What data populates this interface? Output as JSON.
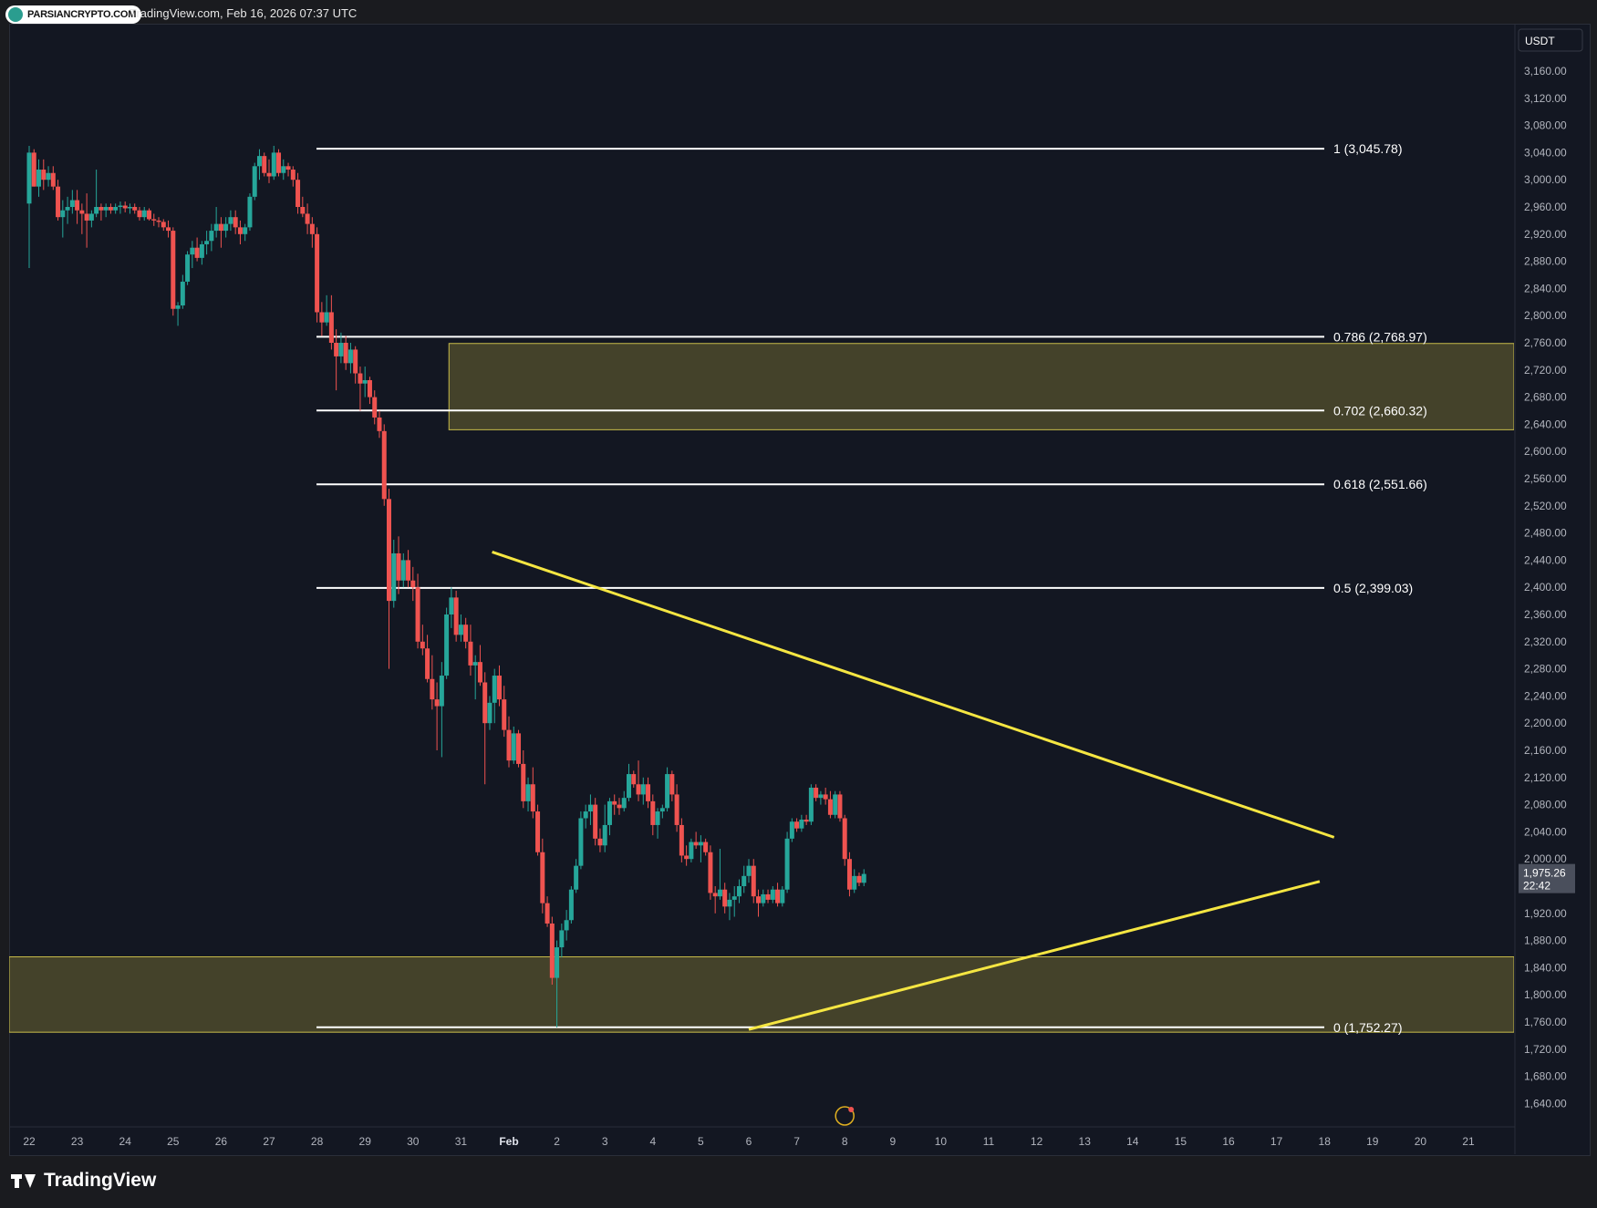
{
  "header": {
    "badge": "PARSIANCRYPTO.COM",
    "caption": "TradingView.com, Feb 16, 2026 07:37 UTC"
  },
  "footer": {
    "brand": "TradingView"
  },
  "chart_data": {
    "type": "candlestick",
    "currency": "USDT",
    "ylim": [
      1610,
      3195
    ],
    "y_ticks": [
      3160,
      3120,
      3080,
      3040,
      3000,
      2960,
      2920,
      2880,
      2840,
      2800,
      2760,
      2720,
      2680,
      2640,
      2600,
      2560,
      2520,
      2480,
      2440,
      2400,
      2360,
      2320,
      2280,
      2240,
      2200,
      2160,
      2120,
      2080,
      2040,
      2000,
      1920,
      1880,
      1840,
      1800,
      1760,
      1720,
      1680,
      1640
    ],
    "x_ticks": [
      "22",
      "23",
      "24",
      "25",
      "26",
      "27",
      "28",
      "29",
      "30",
      "31",
      "Feb",
      "2",
      "3",
      "4",
      "5",
      "6",
      "7",
      "8",
      "9",
      "10",
      "11",
      "12",
      "13",
      "14",
      "15",
      "16",
      "17",
      "18",
      "19",
      "20",
      "21"
    ],
    "last_price": {
      "value": "1,975.26",
      "countdown": "22:42"
    },
    "fib_levels": [
      {
        "label": "1 (3,045.78)",
        "value": 3045.78
      },
      {
        "label": "0.786 (2,768.97)",
        "value": 2768.97
      },
      {
        "label": "0.702 (2,660.32)",
        "value": 2660.32
      },
      {
        "label": "0.618 (2,551.66)",
        "value": 2551.66
      },
      {
        "label": "0.5 (2,399.03)",
        "value": 2399.03
      },
      {
        "label": "0 (1,752.27)",
        "value": 1752.27
      }
    ],
    "zones": [
      {
        "from_day": 30.75,
        "to_day": "end",
        "low": 2632,
        "high": 2759
      },
      {
        "from_day": "start",
        "to_day": "end",
        "low": 1745,
        "high": 1856
      }
    ],
    "trendlines": [
      {
        "name": "descending resistance",
        "from": [
          31.65,
          2452
        ],
        "to": [
          49.2,
          2032
        ]
      },
      {
        "name": "ascending support",
        "from": [
          37.0,
          1749
        ],
        "to": [
          48.9,
          1967
        ]
      }
    ],
    "colors": {
      "up": "#26a69a",
      "down": "#ef5350",
      "zone": "#4d4a2c",
      "trend": "#f5e642",
      "fib": "#ffffff"
    },
    "candles": [
      [
        22.0,
        2965,
        3050,
        2870,
        3040
      ],
      [
        22.1,
        3040,
        3045,
        2990,
        2990
      ],
      [
        22.2,
        2990,
        3030,
        2975,
        3015
      ],
      [
        22.3,
        3015,
        3030,
        2985,
        3000
      ],
      [
        22.4,
        3000,
        3020,
        2990,
        3010
      ],
      [
        22.5,
        3010,
        3020,
        2985,
        2990
      ],
      [
        22.6,
        2990,
        3000,
        2940,
        2945
      ],
      [
        22.7,
        2945,
        2970,
        2915,
        2955
      ],
      [
        22.8,
        2955,
        2975,
        2935,
        2960
      ],
      [
        22.9,
        2960,
        2985,
        2950,
        2970
      ],
      [
        23.0,
        2970,
        2985,
        2935,
        2955
      ],
      [
        23.1,
        2955,
        2965,
        2920,
        2950
      ],
      [
        23.2,
        2950,
        2980,
        2900,
        2940
      ],
      [
        23.3,
        2940,
        2955,
        2930,
        2950
      ],
      [
        23.4,
        2950,
        3015,
        2945,
        2960
      ],
      [
        23.5,
        2960,
        2965,
        2940,
        2955
      ],
      [
        23.6,
        2955,
        2965,
        2945,
        2960
      ],
      [
        23.7,
        2960,
        2965,
        2950,
        2955
      ],
      [
        23.8,
        2955,
        2965,
        2950,
        2960
      ],
      [
        23.9,
        2960,
        2968,
        2950,
        2962
      ],
      [
        24.0,
        2962,
        2968,
        2952,
        2958
      ],
      [
        24.1,
        2958,
        2965,
        2950,
        2960
      ],
      [
        24.2,
        2960,
        2965,
        2950,
        2955
      ],
      [
        24.3,
        2955,
        2960,
        2940,
        2945
      ],
      [
        24.4,
        2945,
        2960,
        2940,
        2955
      ],
      [
        24.5,
        2955,
        2958,
        2940,
        2942
      ],
      [
        24.6,
        2942,
        2950,
        2932,
        2940
      ],
      [
        24.7,
        2940,
        2945,
        2930,
        2938
      ],
      [
        24.8,
        2938,
        2942,
        2925,
        2930
      ],
      [
        24.9,
        2930,
        2940,
        2915,
        2925
      ],
      [
        25.0,
        2925,
        2930,
        2800,
        2810
      ],
      [
        25.1,
        2810,
        2820,
        2785,
        2815
      ],
      [
        25.2,
        2815,
        2860,
        2810,
        2850
      ],
      [
        25.3,
        2850,
        2895,
        2845,
        2890
      ],
      [
        25.4,
        2890,
        2910,
        2870,
        2900
      ],
      [
        25.5,
        2900,
        2915,
        2880,
        2885
      ],
      [
        25.6,
        2885,
        2910,
        2875,
        2905
      ],
      [
        25.7,
        2905,
        2925,
        2890,
        2910
      ],
      [
        25.8,
        2910,
        2935,
        2895,
        2925
      ],
      [
        25.9,
        2925,
        2960,
        2915,
        2935
      ],
      [
        26.0,
        2935,
        2945,
        2900,
        2925
      ],
      [
        26.1,
        2925,
        2945,
        2915,
        2935
      ],
      [
        26.2,
        2935,
        2955,
        2925,
        2945
      ],
      [
        26.3,
        2945,
        2955,
        2920,
        2930
      ],
      [
        26.4,
        2930,
        2940,
        2905,
        2920
      ],
      [
        26.5,
        2920,
        2935,
        2910,
        2930
      ],
      [
        26.6,
        2930,
        2980,
        2925,
        2975
      ],
      [
        26.7,
        2975,
        3025,
        2970,
        3020
      ],
      [
        26.8,
        3020,
        3045,
        3000,
        3035
      ],
      [
        26.9,
        3035,
        3040,
        3005,
        3010
      ],
      [
        27.0,
        3010,
        3030,
        2995,
        3005
      ],
      [
        27.1,
        3005,
        3050,
        3000,
        3040
      ],
      [
        27.2,
        3040,
        3045,
        3005,
        3010
      ],
      [
        27.3,
        3010,
        3030,
        3000,
        3020
      ],
      [
        27.4,
        3020,
        3025,
        3005,
        3015
      ],
      [
        27.5,
        3015,
        3020,
        2990,
        3000
      ],
      [
        27.6,
        3000,
        3010,
        2950,
        2960
      ],
      [
        27.7,
        2960,
        2975,
        2945,
        2950
      ],
      [
        27.8,
        2950,
        2965,
        2920,
        2935
      ],
      [
        27.9,
        2935,
        2945,
        2900,
        2920
      ],
      [
        28.0,
        2920,
        2930,
        2790,
        2805
      ],
      [
        28.1,
        2805,
        2820,
        2770,
        2790
      ],
      [
        28.2,
        2790,
        2830,
        2785,
        2805
      ],
      [
        28.3,
        2805,
        2830,
        2750,
        2760
      ],
      [
        28.4,
        2760,
        2780,
        2690,
        2740
      ],
      [
        28.5,
        2740,
        2775,
        2730,
        2760
      ],
      [
        28.6,
        2760,
        2770,
        2720,
        2730
      ],
      [
        28.7,
        2730,
        2760,
        2715,
        2750
      ],
      [
        28.8,
        2750,
        2755,
        2700,
        2715
      ],
      [
        28.9,
        2715,
        2725,
        2660,
        2700
      ],
      [
        29.0,
        2700,
        2725,
        2680,
        2705
      ],
      [
        29.1,
        2705,
        2710,
        2670,
        2680
      ],
      [
        29.2,
        2680,
        2690,
        2640,
        2650
      ],
      [
        29.3,
        2650,
        2660,
        2620,
        2630
      ],
      [
        29.4,
        2630,
        2640,
        2520,
        2530
      ],
      [
        29.5,
        2530,
        2545,
        2280,
        2380
      ],
      [
        29.6,
        2380,
        2470,
        2370,
        2450
      ],
      [
        29.7,
        2450,
        2475,
        2390,
        2410
      ],
      [
        29.8,
        2410,
        2450,
        2400,
        2440
      ],
      [
        29.9,
        2440,
        2455,
        2400,
        2410
      ],
      [
        30.0,
        2410,
        2430,
        2380,
        2400
      ],
      [
        30.1,
        2400,
        2420,
        2310,
        2320
      ],
      [
        30.2,
        2320,
        2345,
        2300,
        2310
      ],
      [
        30.3,
        2310,
        2330,
        2260,
        2265
      ],
      [
        30.4,
        2265,
        2300,
        2220,
        2235
      ],
      [
        30.5,
        2235,
        2260,
        2160,
        2225
      ],
      [
        30.6,
        2225,
        2290,
        2150,
        2270
      ],
      [
        30.7,
        2270,
        2370,
        2265,
        2360
      ],
      [
        30.8,
        2360,
        2400,
        2340,
        2385
      ],
      [
        30.9,
        2385,
        2395,
        2320,
        2330
      ],
      [
        31.0,
        2330,
        2360,
        2320,
        2345
      ],
      [
        31.1,
        2345,
        2355,
        2310,
        2320
      ],
      [
        31.2,
        2320,
        2345,
        2270,
        2285
      ],
      [
        31.3,
        2285,
        2300,
        2235,
        2290
      ],
      [
        31.4,
        2290,
        2315,
        2255,
        2260
      ],
      [
        31.5,
        2260,
        2275,
        2110,
        2200
      ],
      [
        31.6,
        2200,
        2240,
        2190,
        2230
      ],
      [
        31.7,
        2230,
        2280,
        2200,
        2270
      ],
      [
        31.8,
        2270,
        2285,
        2225,
        2235
      ],
      [
        31.9,
        2235,
        2255,
        2180,
        2190
      ],
      [
        32.0,
        2190,
        2210,
        2135,
        2145
      ],
      [
        32.1,
        2145,
        2195,
        2140,
        2185
      ],
      [
        32.2,
        2185,
        2190,
        2135,
        2140
      ],
      [
        32.3,
        2140,
        2160,
        2075,
        2085
      ],
      [
        32.4,
        2085,
        2120,
        2070,
        2110
      ],
      [
        32.5,
        2110,
        2135,
        2060,
        2070
      ],
      [
        32.6,
        2070,
        2080,
        2005,
        2010
      ],
      [
        32.7,
        2010,
        2030,
        1920,
        1935
      ],
      [
        32.8,
        1935,
        1945,
        1900,
        1905
      ],
      [
        32.9,
        1905,
        1915,
        1815,
        1825
      ],
      [
        33.0,
        1825,
        1880,
        1752,
        1870
      ],
      [
        33.1,
        1870,
        1905,
        1855,
        1895
      ],
      [
        33.2,
        1895,
        1925,
        1880,
        1910
      ],
      [
        33.3,
        1910,
        1960,
        1905,
        1955
      ],
      [
        33.4,
        1955,
        2000,
        1950,
        1990
      ],
      [
        33.5,
        1990,
        2070,
        1985,
        2060
      ],
      [
        33.6,
        2060,
        2080,
        2045,
        2070
      ],
      [
        33.7,
        2070,
        2095,
        2050,
        2080
      ],
      [
        33.8,
        2080,
        2090,
        2020,
        2030
      ],
      [
        33.9,
        2030,
        2045,
        2010,
        2020
      ],
      [
        34.0,
        2020,
        2080,
        2010,
        2050
      ],
      [
        34.1,
        2050,
        2090,
        2035,
        2085
      ],
      [
        34.2,
        2085,
        2095,
        2065,
        2080
      ],
      [
        34.3,
        2080,
        2090,
        2065,
        2075
      ],
      [
        34.4,
        2075,
        2100,
        2070,
        2090
      ],
      [
        34.5,
        2090,
        2140,
        2085,
        2125
      ],
      [
        34.6,
        2125,
        2130,
        2105,
        2110
      ],
      [
        34.7,
        2110,
        2145,
        2085,
        2095
      ],
      [
        34.8,
        2095,
        2120,
        2080,
        2110
      ],
      [
        34.9,
        2110,
        2120,
        2075,
        2085
      ],
      [
        35.0,
        2085,
        2095,
        2035,
        2050
      ],
      [
        35.1,
        2050,
        2075,
        2030,
        2070
      ],
      [
        35.2,
        2070,
        2080,
        2060,
        2075
      ],
      [
        35.3,
        2075,
        2135,
        2070,
        2125
      ],
      [
        35.4,
        2125,
        2130,
        2085,
        2095
      ],
      [
        35.5,
        2095,
        2110,
        2040,
        2050
      ],
      [
        35.6,
        2050,
        2060,
        1995,
        2005
      ],
      [
        35.7,
        2005,
        2020,
        1990,
        2000
      ],
      [
        35.8,
        2000,
        2030,
        1995,
        2025
      ],
      [
        35.9,
        2025,
        2040,
        2015,
        2020
      ],
      [
        36.0,
        2020,
        2035,
        1995,
        2025
      ],
      [
        36.1,
        2025,
        2030,
        2005,
        2010
      ],
      [
        36.2,
        2010,
        2020,
        1940,
        1950
      ],
      [
        36.3,
        1950,
        1960,
        1920,
        1945
      ],
      [
        36.4,
        1945,
        2015,
        1940,
        1955
      ],
      [
        36.5,
        1955,
        1965,
        1920,
        1930
      ],
      [
        36.6,
        1930,
        1950,
        1910,
        1940
      ],
      [
        36.7,
        1940,
        1960,
        1915,
        1945
      ],
      [
        36.8,
        1945,
        1970,
        1935,
        1960
      ],
      [
        36.9,
        1960,
        1990,
        1950,
        1975
      ],
      [
        37.0,
        1975,
        2000,
        1965,
        1990
      ],
      [
        37.1,
        1990,
        2000,
        1935,
        1945
      ],
      [
        37.2,
        1945,
        1955,
        1915,
        1935
      ],
      [
        37.3,
        1935,
        1955,
        1930,
        1948
      ],
      [
        37.4,
        1948,
        1955,
        1935,
        1940
      ],
      [
        37.5,
        1940,
        1960,
        1935,
        1955
      ],
      [
        37.6,
        1955,
        1965,
        1930,
        1935
      ],
      [
        37.7,
        1935,
        1960,
        1930,
        1955
      ],
      [
        37.8,
        1955,
        2040,
        1950,
        2030
      ],
      [
        37.9,
        2030,
        2060,
        2025,
        2055
      ],
      [
        38.0,
        2055,
        2060,
        2040,
        2045
      ],
      [
        38.1,
        2045,
        2065,
        2040,
        2058
      ],
      [
        38.2,
        2058,
        2065,
        2050,
        2055
      ],
      [
        38.3,
        2055,
        2110,
        2050,
        2105
      ],
      [
        38.4,
        2105,
        2110,
        2085,
        2090
      ],
      [
        38.5,
        2090,
        2100,
        2080,
        2095
      ],
      [
        38.6,
        2095,
        2105,
        2080,
        2088
      ],
      [
        38.7,
        2088,
        2100,
        2060,
        2065
      ],
      [
        38.8,
        2065,
        2100,
        2060,
        2095
      ],
      [
        38.9,
        2095,
        2100,
        2055,
        2060
      ],
      [
        39.0,
        2060,
        2065,
        1990,
        2000
      ],
      [
        39.1,
        2000,
        2010,
        1945,
        1955
      ],
      [
        39.2,
        1955,
        1985,
        1950,
        1975
      ],
      [
        39.3,
        1975,
        1980,
        1960,
        1965
      ],
      [
        39.4,
        1965,
        1985,
        1960,
        1978
      ]
    ]
  }
}
